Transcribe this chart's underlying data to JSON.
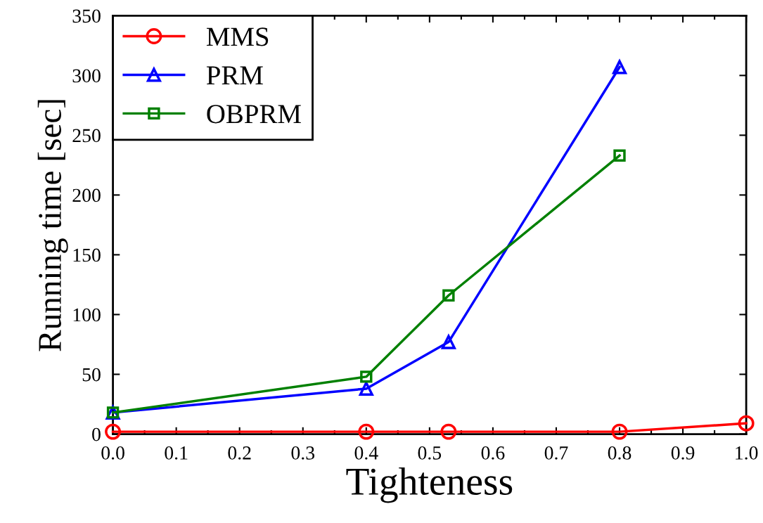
{
  "chart_data": {
    "type": "line",
    "xlabel": "Tighteness",
    "ylabel": "Running time [sec]",
    "xlim": [
      0.0,
      1.0
    ],
    "xticks": [
      {
        "value": 0.0,
        "label": "0.0"
      },
      0.1,
      0.2,
      0.3,
      0.4,
      0.5,
      0.6,
      0.7,
      0.8,
      0.9,
      {
        "value": 1.0,
        "label": "1.0"
      }
    ],
    "ylim": [
      0,
      350
    ],
    "yticks": [
      0,
      50,
      100,
      150,
      200,
      250,
      300,
      350
    ],
    "grid": false,
    "legend": "top left",
    "series": [
      {
        "name": "MMS",
        "color": "#ff0000",
        "marker": "circle",
        "x": [
          0.0,
          0.4,
          0.53,
          0.8,
          1.0
        ],
        "values": [
          2,
          2,
          2,
          2,
          9
        ]
      },
      {
        "name": "PRM",
        "color": "#0000ff",
        "marker": "triangle",
        "x": [
          0.0,
          0.4,
          0.53,
          0.8
        ],
        "values": [
          18,
          38,
          77,
          307
        ]
      },
      {
        "name": "OBPRM",
        "color": "#008000",
        "marker": "square",
        "x": [
          0.0,
          0.4,
          0.53,
          0.8
        ],
        "values": [
          18,
          48,
          116,
          233
        ]
      }
    ]
  }
}
